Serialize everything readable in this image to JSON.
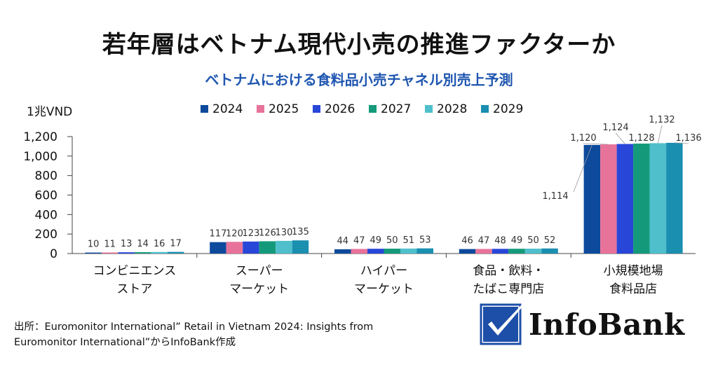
{
  "title": "若年層はベトナム現代小売の推進ファクターか",
  "subtitle": "ベトナムにおける食料品小売チャネル別売上予測",
  "source": {
    "line1": "出所：Euromonitor International” Retail in Vietnam 2024: Insights from",
    "line2": "Euromonitor International”からInfoBank作成"
  },
  "logo": {
    "text": "InfoBank",
    "icon": "checkmark-icon"
  },
  "colors": {
    "2024": "#0d4a9c",
    "2025": "#e8739a",
    "2026": "#2846d8",
    "2027": "#149a7a",
    "2028": "#4fbfcc",
    "2029": "#1a8fb0"
  },
  "chart_data": {
    "type": "bar",
    "ylabel": "1兆VND",
    "ylim": [
      0,
      1200
    ],
    "yticks": [
      "0",
      "200",
      "400",
      "600",
      "800",
      "1,000",
      "1,200"
    ],
    "legend_position": "top",
    "categories": [
      [
        "コンビニエンス",
        "ストア"
      ],
      [
        "スーパー",
        "マーケット"
      ],
      [
        "ハイパー",
        "マーケット"
      ],
      [
        "食品・飲料・",
        "たばこ専門店"
      ],
      [
        "小規模地場",
        "食料品店"
      ]
    ],
    "series": [
      {
        "name": "2024",
        "values": [
          10,
          117,
          44,
          46,
          1114
        ],
        "labels": [
          "10",
          "117",
          "44",
          "46",
          "1,114"
        ]
      },
      {
        "name": "2025",
        "values": [
          11,
          120,
          47,
          47,
          1120
        ],
        "labels": [
          "11",
          "120",
          "47",
          "47",
          "1,120"
        ]
      },
      {
        "name": "2026",
        "values": [
          13,
          123,
          49,
          48,
          1124
        ],
        "labels": [
          "13",
          "123",
          "49",
          "48",
          "1,124"
        ]
      },
      {
        "name": "2027",
        "values": [
          14,
          126,
          50,
          49,
          1128
        ],
        "labels": [
          "14",
          "126",
          "50",
          "49",
          "1,128"
        ]
      },
      {
        "name": "2028",
        "values": [
          16,
          130,
          51,
          50,
          1132
        ],
        "labels": [
          "16",
          "130",
          "51",
          "50",
          "1,132"
        ]
      },
      {
        "name": "2029",
        "values": [
          17,
          135,
          53,
          52,
          1136
        ],
        "labels": [
          "17",
          "135",
          "53",
          "52",
          "1,136"
        ]
      }
    ]
  }
}
